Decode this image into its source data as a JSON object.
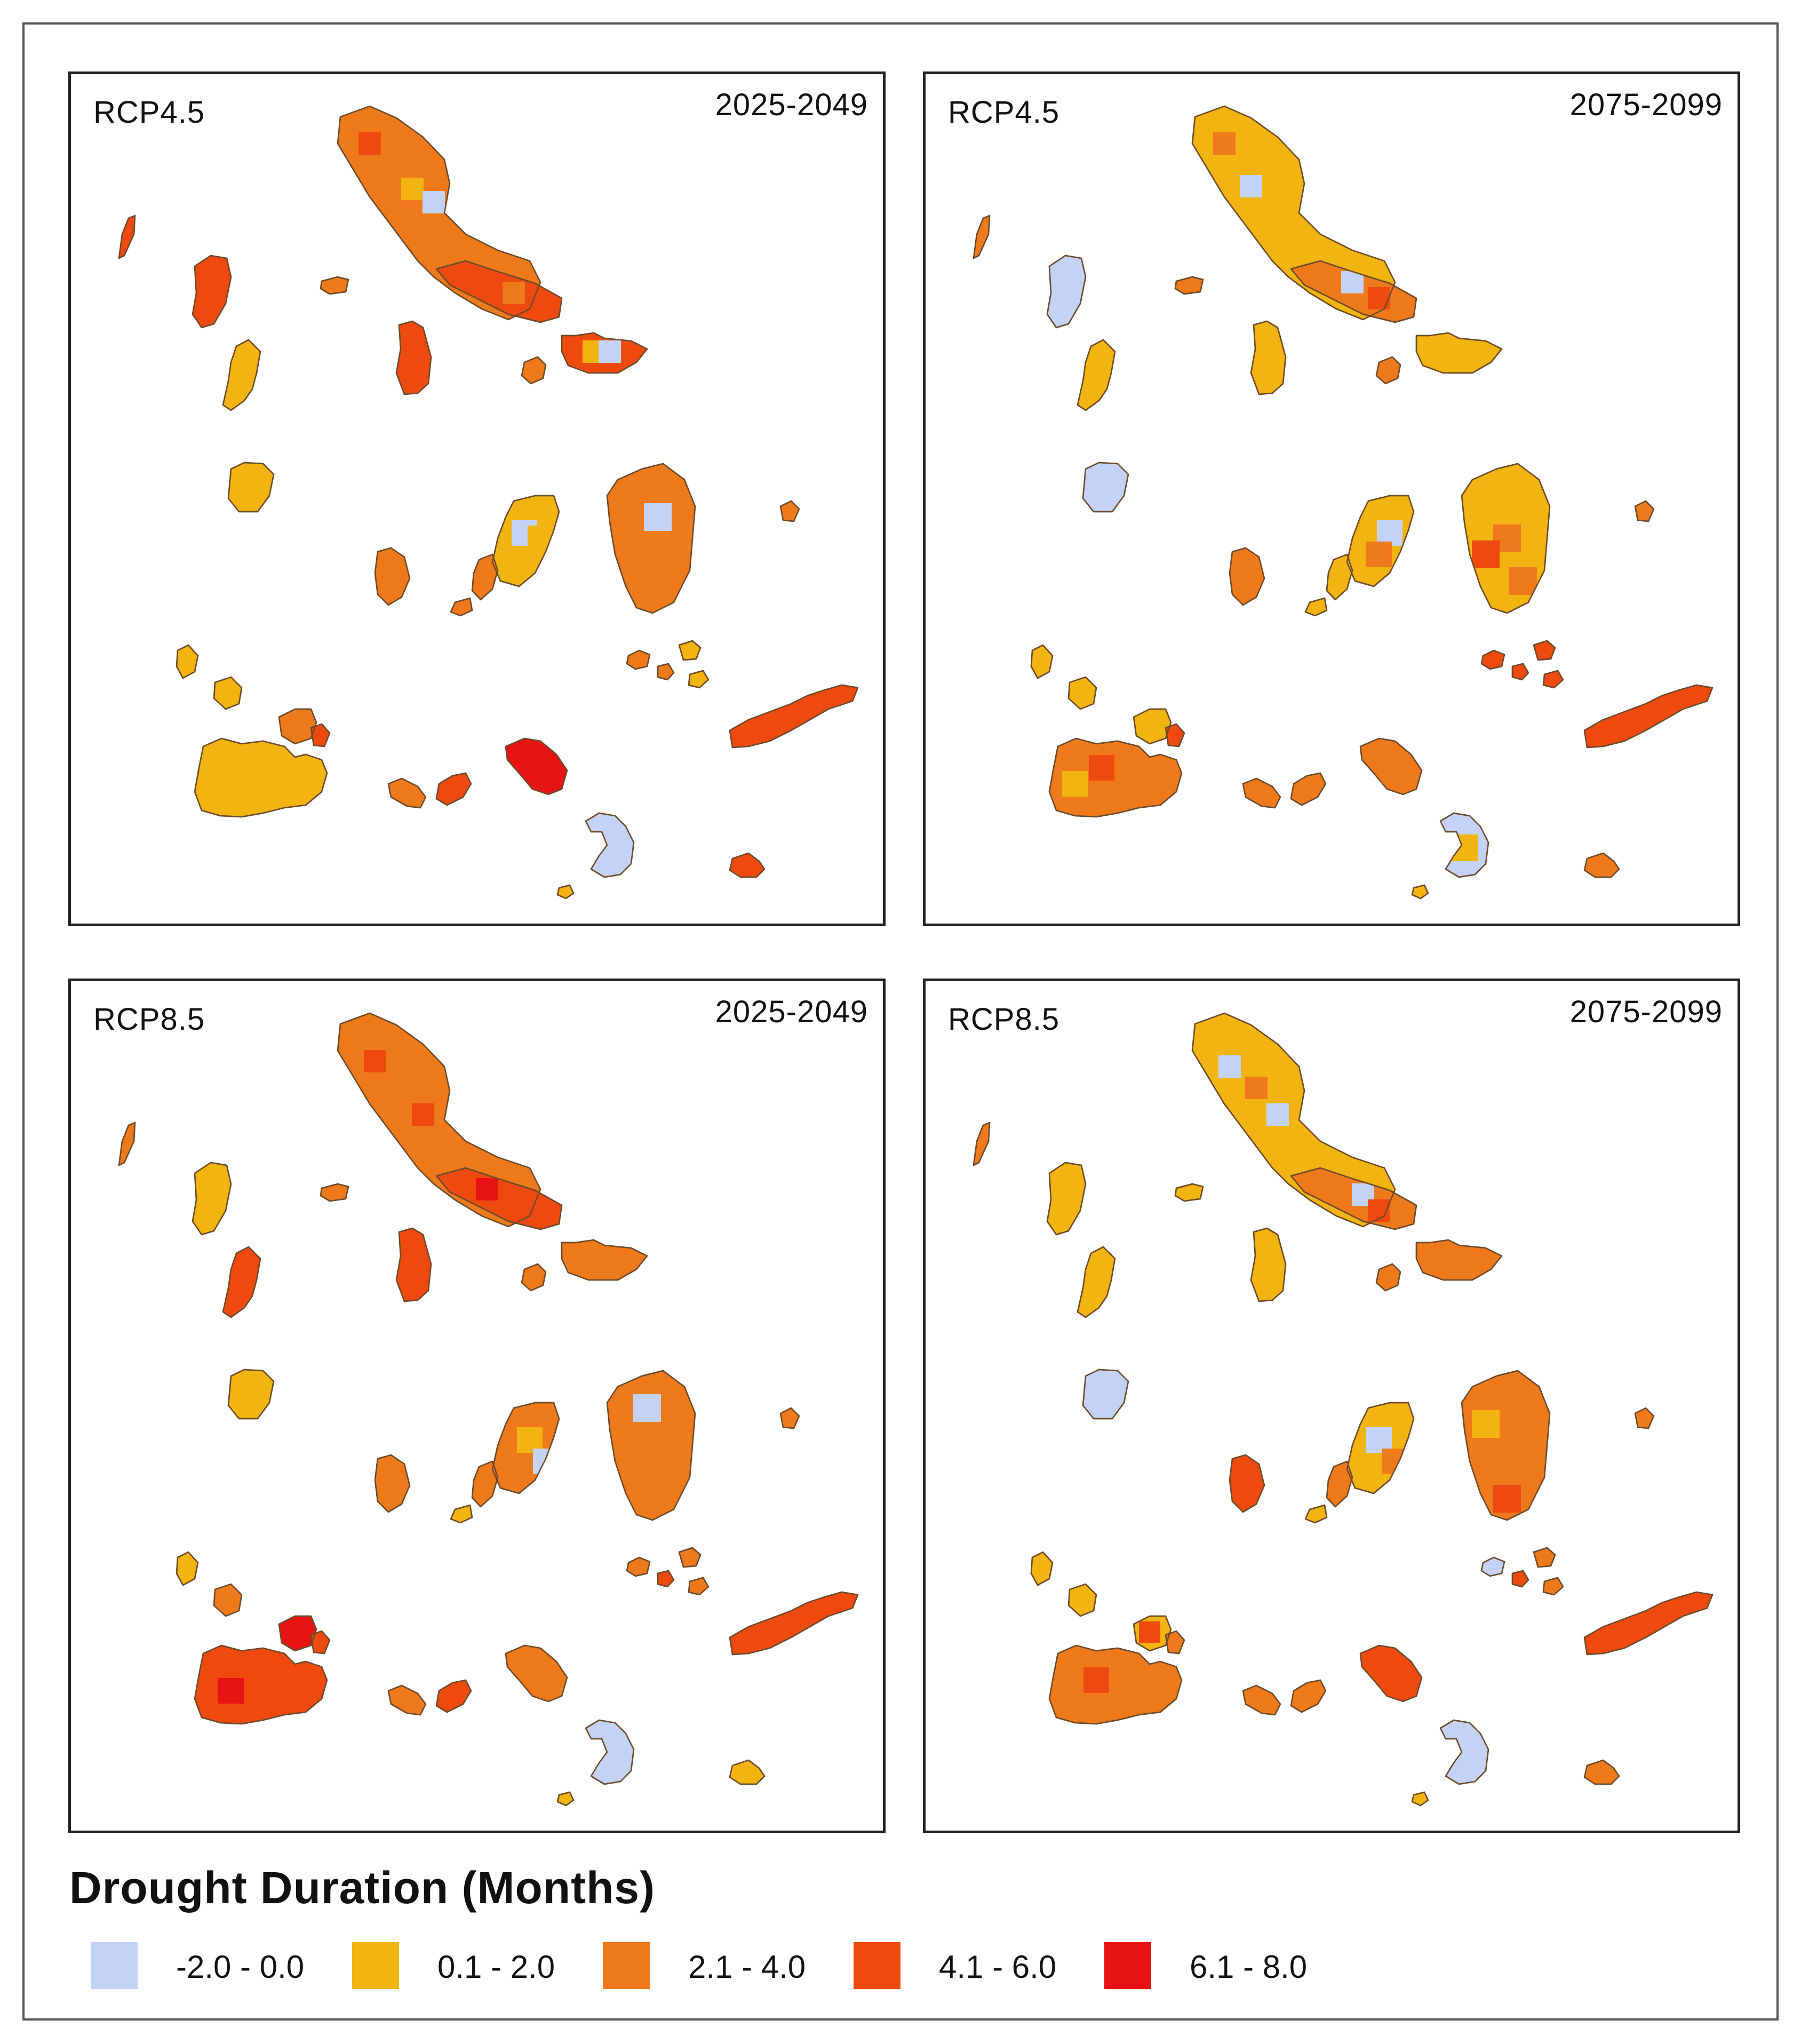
{
  "colors": {
    "class_1": "#c4d2f6",
    "class_2": "#f2b410",
    "class_3": "#ee7a1c",
    "class_4": "#ee4a10",
    "class_5": "#e81414",
    "outline": "#6b4a2a"
  },
  "panels": [
    {
      "scenario": "RCP4.5",
      "period": "2025-2049"
    },
    {
      "scenario": "RCP4.5",
      "period": "2075-2099"
    },
    {
      "scenario": "RCP8.5",
      "period": "2025-2049"
    },
    {
      "scenario": "RCP8.5",
      "period": "2075-2099"
    }
  ],
  "legend": {
    "title": "Drought Duration (Months)",
    "classes": [
      {
        "label": "-2.0 - 0.0",
        "color": "#c4d2f6"
      },
      {
        "label": "0.1 - 2.0",
        "color": "#f2b410"
      },
      {
        "label": "2.1 - 4.0",
        "color": "#ee7a1c"
      },
      {
        "label": "4.1 - 6.0",
        "color": "#ee4a10"
      },
      {
        "label": "6.1 - 8.0",
        "color": "#e81414"
      }
    ]
  }
}
